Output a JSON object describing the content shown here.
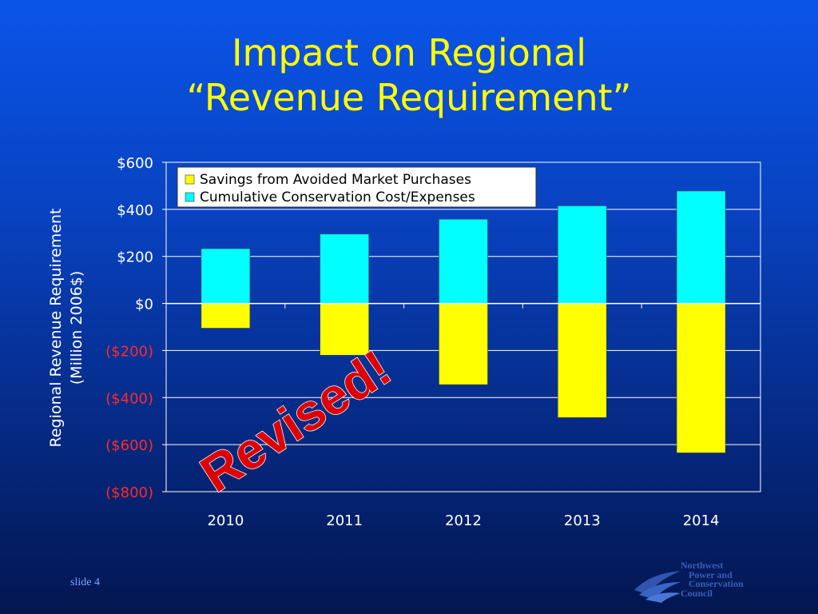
{
  "slide": {
    "title_line1": "Impact on Regional",
    "title_line2": "“Revenue Requirement”",
    "stamp": "Revised!",
    "slide_number": "slide 4",
    "logo_lines": [
      "Northwest",
      "Power and",
      "Conservation",
      "Council"
    ]
  },
  "chart_data": {
    "type": "bar",
    "stacked": true,
    "title": "",
    "xlabel": "",
    "ylabel_line1": "Regional Revenue Requirement",
    "ylabel_line2": "(Million 2006$)",
    "categories": [
      "2010",
      "2011",
      "2012",
      "2013",
      "2014"
    ],
    "series": [
      {
        "name": "Savings from Avoided Market Purchases",
        "color": "#ffff00",
        "values": [
          -105,
          -220,
          -345,
          -485,
          -635
        ]
      },
      {
        "name": "Cumulative Conservation Cost/Expenses",
        "color": "#00ffff",
        "values": [
          233,
          295,
          358,
          415,
          478
        ]
      }
    ],
    "ylim": [
      -800,
      600
    ],
    "yticks": [
      {
        "value": 600,
        "label": "$600"
      },
      {
        "value": 400,
        "label": "$400"
      },
      {
        "value": 200,
        "label": "$200"
      },
      {
        "value": 0,
        "label": "$0"
      },
      {
        "value": -200,
        "label": "($200)"
      },
      {
        "value": -400,
        "label": "($400)"
      },
      {
        "value": -600,
        "label": "($600)"
      },
      {
        "value": -800,
        "label": "($800)"
      }
    ],
    "grid": true,
    "legend_position": "top-left",
    "colors": {
      "positive_tick": "#ffffff",
      "negative_tick": "#ff2a2a",
      "gridline": "#ffffff",
      "stamp": "#dd0000"
    }
  }
}
